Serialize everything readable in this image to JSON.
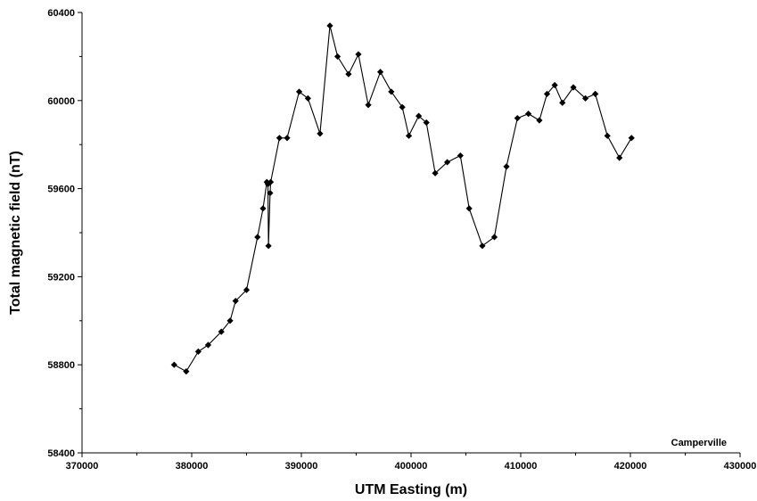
{
  "chart_data": {
    "type": "line",
    "xlabel": "UTM Easting (m)",
    "ylabel": "Total magnetic field (nT)",
    "xlim": [
      370000,
      430000
    ],
    "ylim": [
      58400,
      60400
    ],
    "x_ticks": [
      "370000",
      "380000",
      "390000",
      "400000",
      "410000",
      "420000",
      "430000"
    ],
    "y_ticks": [
      "58400",
      "58800",
      "59200",
      "59600",
      "60000",
      "60400"
    ],
    "annotation": "Camperville",
    "marker": "diamond",
    "line_color": "#000000",
    "grid": false,
    "series": [
      {
        "points": [
          [
            378400,
            58800
          ],
          [
            379500,
            58770
          ],
          [
            380600,
            58860
          ],
          [
            381500,
            58890
          ],
          [
            382700,
            58950
          ],
          [
            383500,
            59000
          ],
          [
            384000,
            59090
          ],
          [
            385000,
            59140
          ],
          [
            386000,
            59380
          ],
          [
            386500,
            59510
          ],
          [
            386850,
            59630
          ],
          [
            386950,
            59620
          ],
          [
            387000,
            59340
          ],
          [
            387150,
            59580
          ],
          [
            387200,
            59630
          ],
          [
            388000,
            59830
          ],
          [
            388700,
            59830
          ],
          [
            389800,
            60040
          ],
          [
            390600,
            60010
          ],
          [
            391700,
            59850
          ],
          [
            392600,
            60340
          ],
          [
            393300,
            60200
          ],
          [
            394300,
            60120
          ],
          [
            395200,
            60210
          ],
          [
            396100,
            59980
          ],
          [
            397200,
            60130
          ],
          [
            398200,
            60040
          ],
          [
            399200,
            59970
          ],
          [
            399800,
            59840
          ],
          [
            400700,
            59930
          ],
          [
            401400,
            59900
          ],
          [
            402200,
            59670
          ],
          [
            403300,
            59720
          ],
          [
            404500,
            59750
          ],
          [
            405300,
            59510
          ],
          [
            406500,
            59340
          ],
          [
            407600,
            59380
          ],
          [
            408700,
            59700
          ],
          [
            409700,
            59920
          ],
          [
            410700,
            59940
          ],
          [
            411700,
            59910
          ],
          [
            412400,
            60030
          ],
          [
            413100,
            60070
          ],
          [
            413800,
            59990
          ],
          [
            414800,
            60060
          ],
          [
            415900,
            60010
          ],
          [
            416800,
            60030
          ],
          [
            417900,
            59840
          ],
          [
            419000,
            59740
          ],
          [
            420100,
            59830
          ]
        ]
      }
    ]
  }
}
